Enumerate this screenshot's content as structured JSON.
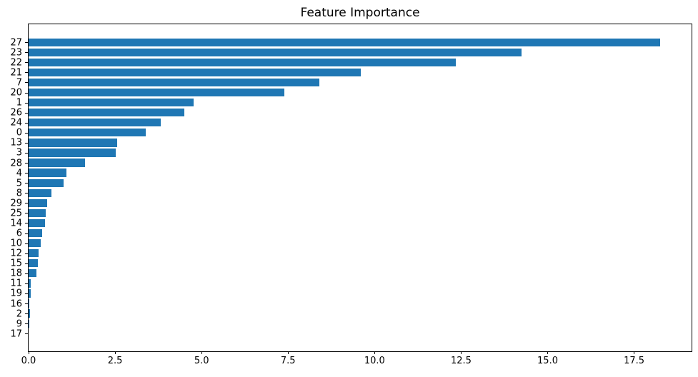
{
  "chart_data": {
    "type": "bar",
    "orientation": "horizontal",
    "title": "Feature Importance",
    "xlabel": "",
    "ylabel": "",
    "categories": [
      "27",
      "23",
      "22",
      "21",
      "7",
      "20",
      "1",
      "26",
      "24",
      "0",
      "13",
      "3",
      "28",
      "4",
      "5",
      "8",
      "29",
      "25",
      "14",
      "6",
      "10",
      "12",
      "15",
      "18",
      "11",
      "19",
      "16",
      "2",
      "9",
      "17"
    ],
    "values": [
      18.25,
      14.25,
      12.35,
      9.6,
      8.4,
      7.4,
      4.77,
      4.5,
      3.82,
      3.39,
      2.56,
      2.52,
      1.63,
      1.1,
      1.01,
      0.66,
      0.53,
      0.5,
      0.48,
      0.39,
      0.35,
      0.29,
      0.27,
      0.23,
      0.07,
      0.06,
      0.03,
      0.05,
      0.01,
      0.0
    ],
    "xlim": [
      0,
      19.16
    ],
    "xtick_labels": [
      "0.0",
      "2.5",
      "5.0",
      "7.5",
      "10.0",
      "12.5",
      "15.0",
      "17.5"
    ],
    "xtick_values": [
      0,
      2.5,
      5,
      7.5,
      10,
      12.5,
      15,
      17.5
    ],
    "bar_color": "#1f77b4",
    "grid": false,
    "legend": null
  }
}
